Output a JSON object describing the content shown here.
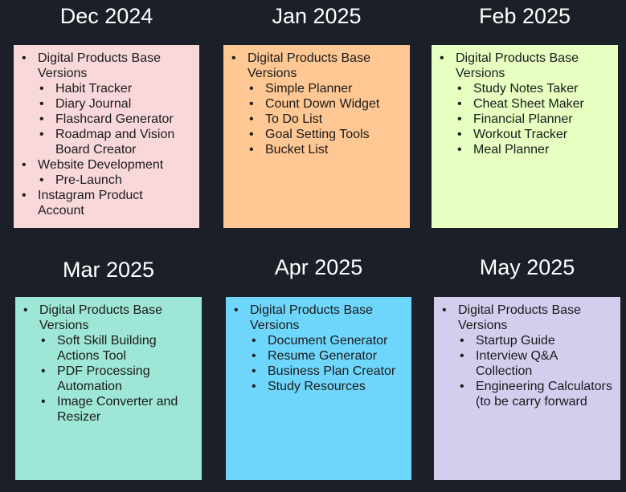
{
  "months": [
    {
      "title": "Dec 2024",
      "color": "#f9d8db",
      "items": [
        {
          "label": "Digital Products Base Versions",
          "children": [
            "Habit Tracker",
            "Diary Journal",
            "Flashcard Generator",
            "Roadmap and Vision Board Creator"
          ]
        },
        {
          "label": "Website Development",
          "children": [
            "Pre-Launch"
          ]
        },
        {
          "label": "Instagram Product Account",
          "children": []
        }
      ]
    },
    {
      "title": "Jan 2025",
      "color": "#fec793",
      "items": [
        {
          "label": "Digital Products Base Versions",
          "children": [
            "Simple Planner",
            "Count Down Widget",
            "To Do List",
            "Goal Setting Tools",
            "Bucket List"
          ]
        }
      ]
    },
    {
      "title": "Feb 2025",
      "color": "#e7ffc1",
      "items": [
        {
          "label": "Digital Products Base Versions",
          "children": [
            "Study Notes Taker",
            "Cheat Sheet Maker",
            "Financial Planner",
            "Workout Tracker",
            "Meal Planner"
          ]
        }
      ]
    },
    {
      "title": "Mar 2025",
      "color": "#9ee6d6",
      "items": [
        {
          "label": "Digital Products Base Versions",
          "children": [
            "Soft Skill Building Actions Tool",
            "PDF Processing Automation",
            "Image Converter and Resizer"
          ]
        }
      ]
    },
    {
      "title": "Apr 2025",
      "color": "#6fd6fb",
      "items": [
        {
          "label": "Digital Products Base Versions",
          "children": [
            "Document Generator",
            "Resume Generator",
            "Business Plan Creator",
            "Study Resources"
          ]
        }
      ]
    },
    {
      "title": "May 2025",
      "color": "#d5cdee",
      "items": [
        {
          "label": "Digital Products Base Versions",
          "children": [
            "Startup Guide",
            "Interview Q&A Collection",
            "Engineering Calculators (to be carry forward"
          ]
        }
      ]
    }
  ]
}
